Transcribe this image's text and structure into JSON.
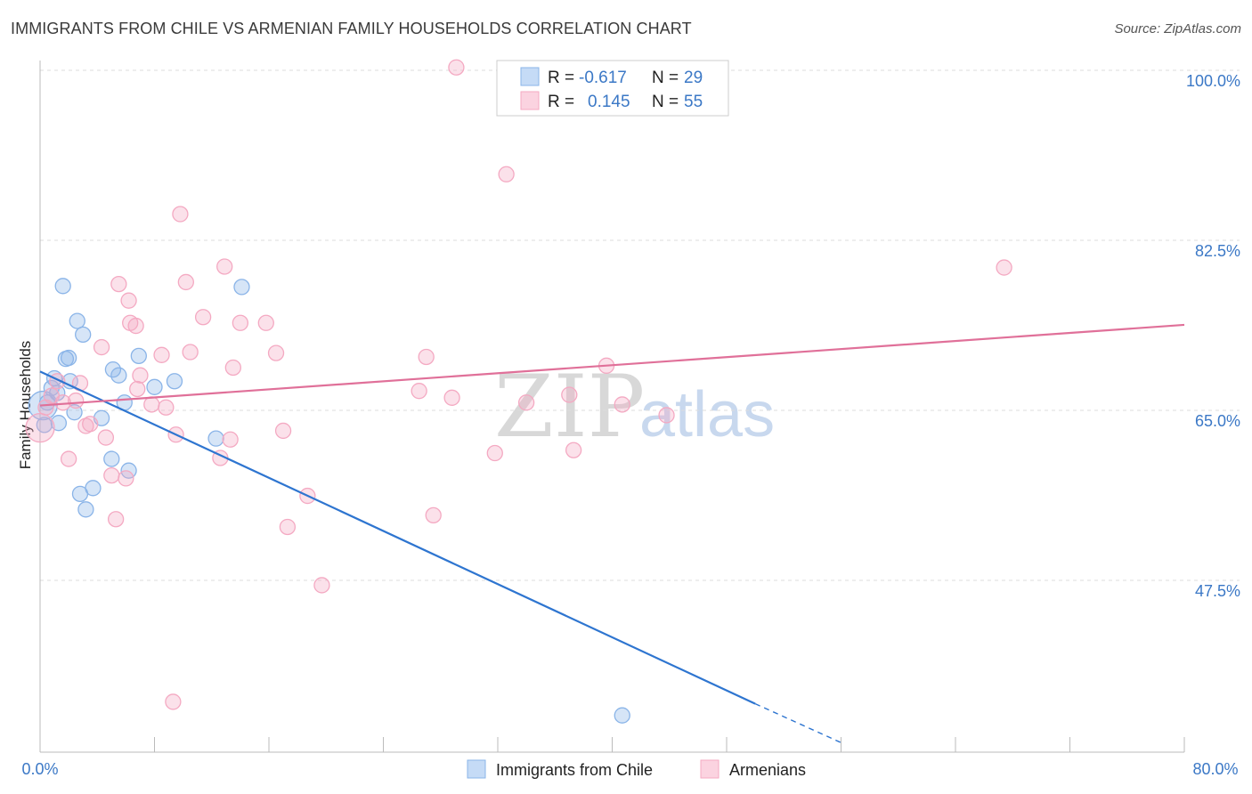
{
  "header": {
    "title": "IMMIGRANTS FROM CHILE VS ARMENIAN FAMILY HOUSEHOLDS CORRELATION CHART",
    "source": "Source: ZipAtlas.com"
  },
  "watermark": {
    "zip": "ZIP",
    "atlas": "atlas"
  },
  "chart_data": {
    "type": "scatter",
    "title": "IMMIGRANTS FROM CHILE VS ARMENIAN FAMILY HOUSEHOLDS CORRELATION CHART",
    "xlabel": "",
    "ylabel": "Family Households",
    "xlim": [
      0,
      80
    ],
    "ylim": [
      30,
      102
    ],
    "x_tick_labels": [
      "0.0%",
      "80.0%"
    ],
    "y_ticks": [
      47.5,
      65.0,
      82.5,
      100.0
    ],
    "y_tick_labels": [
      "47.5%",
      "65.0%",
      "82.5%",
      "100.0%"
    ],
    "grid": true,
    "legend_position": "top-center",
    "legend": [
      {
        "name": "Immigrants from Chile",
        "r_label": "R =",
        "r_value": "-0.617",
        "n_label": "N =",
        "n_value": "29"
      },
      {
        "name": "Armenians",
        "r_label": "R =",
        "r_value": "0.145",
        "n_label": "N =",
        "n_value": "55"
      }
    ],
    "series": [
      {
        "name": "Immigrants from Chile",
        "color": "#8ab4e8",
        "line_color": "#2e75d0",
        "trend": {
          "x": [
            0,
            50
          ],
          "y": [
            69.0,
            34.8
          ],
          "dashed_to": [
            56,
            30.8
          ]
        },
        "points": [
          [
            0.3,
            63.5
          ],
          [
            0.5,
            65.8
          ],
          [
            0.8,
            67.3
          ],
          [
            1.0,
            68.3
          ],
          [
            1.2,
            66.8
          ],
          [
            1.3,
            63.7
          ],
          [
            1.6,
            77.8
          ],
          [
            1.8,
            70.3
          ],
          [
            2.0,
            70.4
          ],
          [
            2.1,
            68.0
          ],
          [
            2.4,
            64.8
          ],
          [
            2.6,
            74.2
          ],
          [
            2.8,
            56.4
          ],
          [
            3.0,
            72.8
          ],
          [
            3.2,
            54.8
          ],
          [
            3.7,
            57.0
          ],
          [
            4.3,
            64.2
          ],
          [
            5.0,
            60.0
          ],
          [
            5.1,
            69.2
          ],
          [
            5.5,
            68.6
          ],
          [
            5.9,
            65.8
          ],
          [
            6.2,
            58.8
          ],
          [
            6.9,
            70.6
          ],
          [
            8.0,
            67.4
          ],
          [
            9.4,
            68.0
          ],
          [
            12.3,
            62.1
          ],
          [
            14.1,
            77.7
          ],
          [
            40.7,
            33.6
          ],
          [
            0.2,
            65.5
          ]
        ]
      },
      {
        "name": "Armenians",
        "color": "#f4a9c2",
        "line_color": "#e07099",
        "trend": {
          "x": [
            0,
            80
          ],
          "y": [
            65.5,
            73.8
          ]
        },
        "points": [
          [
            0.4,
            65.3
          ],
          [
            0.8,
            66.5
          ],
          [
            1.2,
            68.0
          ],
          [
            1.6,
            65.8
          ],
          [
            2.0,
            60.0
          ],
          [
            2.5,
            66.0
          ],
          [
            2.8,
            67.8
          ],
          [
            3.2,
            63.4
          ],
          [
            3.5,
            63.6
          ],
          [
            4.3,
            71.5
          ],
          [
            4.6,
            62.2
          ],
          [
            5.0,
            58.3
          ],
          [
            5.3,
            53.8
          ],
          [
            5.5,
            78.0
          ],
          [
            6.0,
            58.0
          ],
          [
            6.2,
            76.3
          ],
          [
            6.3,
            74.0
          ],
          [
            6.7,
            73.7
          ],
          [
            6.8,
            67.2
          ],
          [
            7.0,
            68.6
          ],
          [
            7.8,
            65.6
          ],
          [
            8.5,
            70.7
          ],
          [
            8.8,
            65.3
          ],
          [
            9.3,
            35.0
          ],
          [
            9.5,
            62.5
          ],
          [
            9.8,
            85.2
          ],
          [
            10.2,
            78.2
          ],
          [
            10.5,
            71.0
          ],
          [
            11.4,
            74.6
          ],
          [
            12.6,
            60.1
          ],
          [
            12.9,
            79.8
          ],
          [
            13.3,
            62.0
          ],
          [
            13.5,
            69.4
          ],
          [
            14.0,
            74.0
          ],
          [
            15.8,
            74.0
          ],
          [
            16.5,
            70.9
          ],
          [
            17.0,
            62.9
          ],
          [
            17.3,
            53.0
          ],
          [
            18.7,
            56.2
          ],
          [
            19.7,
            47.0
          ],
          [
            26.5,
            67.0
          ],
          [
            27.0,
            70.5
          ],
          [
            27.5,
            54.2
          ],
          [
            28.8,
            66.3
          ],
          [
            29.1,
            100.3
          ],
          [
            31.8,
            60.6
          ],
          [
            32.6,
            89.3
          ],
          [
            34.0,
            65.8
          ],
          [
            37.0,
            66.6
          ],
          [
            37.3,
            60.9
          ],
          [
            39.6,
            69.6
          ],
          [
            40.7,
            65.6
          ],
          [
            43.8,
            64.5
          ],
          [
            67.4,
            79.7
          ],
          [
            0.0,
            63.2
          ]
        ]
      }
    ]
  }
}
